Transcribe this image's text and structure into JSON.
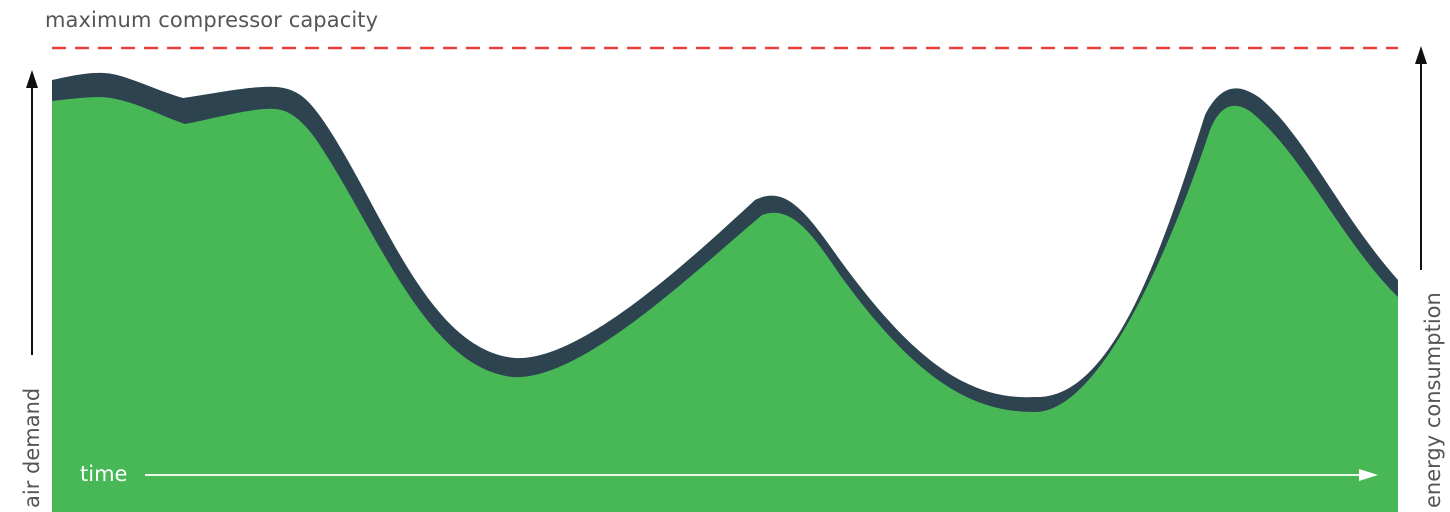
{
  "labels": {
    "max_capacity": "maximum compressor capacity",
    "left_axis": "air demand",
    "right_axis": "energy consumption",
    "time_axis": "time"
  },
  "colors": {
    "area_fill": "#48b857",
    "band": "#2d434f",
    "capacity_line": "#e8413c",
    "axis": "#111111",
    "time_arrow": "#ffffff",
    "text": "#555555"
  }
}
